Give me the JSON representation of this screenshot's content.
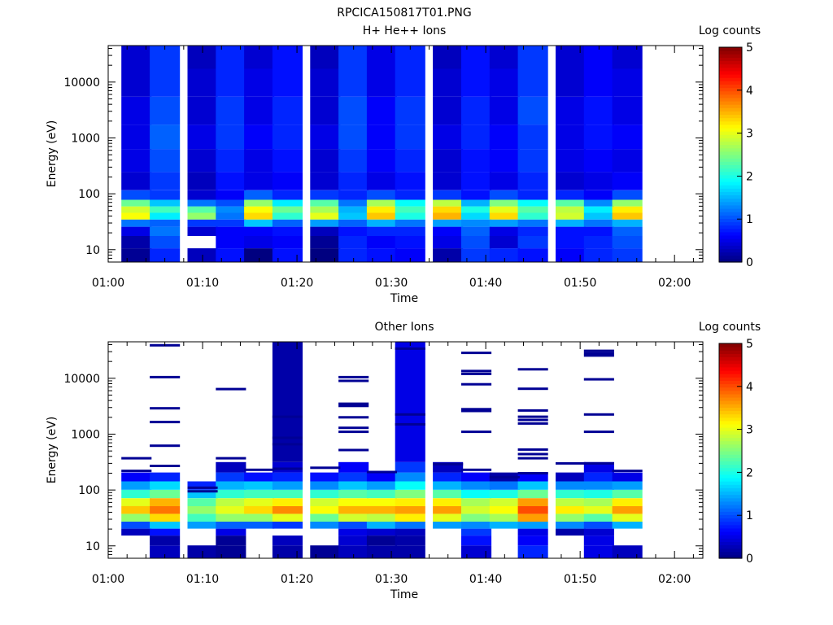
{
  "figure_title": "RPCICA150817T01.PNG",
  "colorbar_ticks": [
    "0",
    "1",
    "2",
    "3",
    "4",
    "5"
  ],
  "chart_data": [
    {
      "type": "heatmap",
      "title": "H+ He++ Ions",
      "xlabel": "Time",
      "ylabel": "Energy (eV)",
      "colorbar_label": "Log counts",
      "xlim": [
        "01:00",
        "02:03"
      ],
      "x_ticks": [
        "01:00",
        "01:10",
        "01:20",
        "01:30",
        "01:40",
        "01:50",
        "02:00"
      ],
      "ylim": [
        6,
        45000
      ],
      "y_scale": "log",
      "y_ticks": [
        "10",
        "100",
        "1000",
        "10000"
      ],
      "clim": [
        0,
        5
      ],
      "time_bins": [
        "01:03",
        "01:06",
        "01:10",
        "01:13",
        "01:16",
        "01:19",
        "01:23",
        "01:26",
        "01:29",
        "01:32",
        "01:36",
        "01:39",
        "01:42",
        "01:45",
        "01:49",
        "01:52",
        "01:55"
      ],
      "energy_bands": [
        {
          "label": "8",
          "values": [
            0.1,
            0.8,
            0.3,
            0.7,
            0.0,
            0.7,
            0.0,
            0.8,
            0.7,
            0.6,
            0.2,
            0.9,
            0.8,
            0.7,
            0.6,
            0.8,
            0.9
          ]
        },
        {
          "label": "14",
          "values": [
            0.2,
            1.0,
            null,
            0.6,
            0.5,
            0.6,
            0.1,
            0.8,
            0.6,
            0.7,
            0.5,
            1.0,
            0.4,
            0.9,
            0.7,
            0.8,
            1.0
          ]
        },
        {
          "label": "22",
          "values": [
            0.5,
            1.2,
            0.4,
            0.6,
            0.6,
            0.7,
            0.3,
            0.7,
            0.8,
            0.8,
            0.6,
            1.1,
            0.5,
            0.8,
            0.7,
            0.7,
            1.1
          ]
        },
        {
          "label": "30",
          "values": [
            1.2,
            1.1,
            0.9,
            0.9,
            1.6,
            1.1,
            1.4,
            1.1,
            1.5,
            1.2,
            1.4,
            1.3,
            1.4,
            1.2,
            1.5,
            1.2,
            1.5
          ]
        },
        {
          "label": "40",
          "values": [
            3.1,
            1.8,
            2.6,
            1.2,
            3.3,
            2.1,
            3.0,
            1.6,
            3.4,
            2.0,
            3.5,
            1.7,
            3.3,
            2.1,
            2.9,
            1.6,
            3.4
          ]
        },
        {
          "label": "52",
          "values": [
            2.9,
            2.2,
            2.3,
            1.3,
            3.1,
            2.4,
            2.7,
            1.5,
            3.2,
            2.2,
            3.3,
            2.0,
            3.0,
            2.3,
            2.8,
            1.8,
            3.2
          ]
        },
        {
          "label": "68",
          "values": [
            2.4,
            1.6,
            1.2,
            1.0,
            2.6,
            1.8,
            2.3,
            1.2,
            2.7,
            1.9,
            2.8,
            1.5,
            2.5,
            1.9,
            2.3,
            1.3,
            2.6
          ]
        },
        {
          "label": "90",
          "values": [
            1.0,
            0.9,
            0.4,
            0.6,
            1.1,
            0.8,
            0.9,
            0.8,
            1.0,
            0.8,
            0.9,
            0.7,
            1.0,
            0.8,
            0.8,
            0.6,
            1.0
          ]
        },
        {
          "label": "150",
          "values": [
            0.4,
            0.9,
            0.3,
            0.7,
            0.5,
            0.6,
            0.4,
            0.8,
            0.5,
            0.7,
            0.4,
            0.7,
            0.5,
            0.8,
            0.4,
            0.5,
            0.6
          ]
        },
        {
          "label": "400",
          "values": [
            0.5,
            1.0,
            0.4,
            0.8,
            0.5,
            0.7,
            0.4,
            0.9,
            0.6,
            0.8,
            0.4,
            0.7,
            0.6,
            0.9,
            0.5,
            0.6,
            0.5
          ]
        },
        {
          "label": "1000",
          "values": [
            0.5,
            1.1,
            0.5,
            0.9,
            0.6,
            0.8,
            0.5,
            1.0,
            0.6,
            0.9,
            0.5,
            0.8,
            0.6,
            0.9,
            0.5,
            0.7,
            0.6
          ]
        },
        {
          "label": "3000",
          "values": [
            0.5,
            1.0,
            0.4,
            0.9,
            0.5,
            0.8,
            0.4,
            1.0,
            0.6,
            0.9,
            0.4,
            0.8,
            0.5,
            1.0,
            0.5,
            0.7,
            0.5
          ]
        },
        {
          "label": "10000",
          "values": [
            0.4,
            0.9,
            0.4,
            0.8,
            0.5,
            0.7,
            0.4,
            0.9,
            0.5,
            0.8,
            0.4,
            0.7,
            0.5,
            0.9,
            0.4,
            0.6,
            0.5
          ]
        },
        {
          "label": "30000",
          "values": [
            0.4,
            0.9,
            0.3,
            0.8,
            0.4,
            0.7,
            0.3,
            0.9,
            0.5,
            0.8,
            0.3,
            0.7,
            0.4,
            0.9,
            0.4,
            0.6,
            0.4
          ]
        }
      ]
    },
    {
      "type": "heatmap",
      "title": "Other Ions",
      "xlabel": "Time",
      "ylabel": "Energy (eV)",
      "colorbar_label": "Log counts",
      "xlim": [
        "01:00",
        "02:03"
      ],
      "x_ticks": [
        "01:00",
        "01:10",
        "01:20",
        "01:30",
        "01:40",
        "01:50",
        "02:00"
      ],
      "ylim": [
        6,
        45000
      ],
      "y_scale": "log",
      "y_ticks": [
        "10",
        "100",
        "1000",
        "10000"
      ],
      "clim": [
        0,
        5
      ],
      "time_bins": [
        "01:03",
        "01:06",
        "01:10",
        "01:13",
        "01:16",
        "01:19",
        "01:23",
        "01:26",
        "01:29",
        "01:32",
        "01:36",
        "01:39",
        "01:42",
        "01:45",
        "01:49",
        "01:52",
        "01:55"
      ],
      "energy_bands": [
        {
          "label": "8",
          "values": [
            null,
            0.3,
            0.2,
            0.1,
            null,
            0.2,
            0.1,
            0.3,
            0.2,
            0.2,
            null,
            0.4,
            null,
            0.8,
            null,
            0.5,
            0.3
          ]
        },
        {
          "label": "13",
          "values": [
            null,
            0.2,
            null,
            0.1,
            null,
            0.3,
            null,
            0.4,
            0.1,
            0.2,
            null,
            0.7,
            null,
            0.6,
            null,
            0.5,
            null
          ]
        },
        {
          "label": "18",
          "values": [
            0.3,
            0.7,
            null,
            0.5,
            null,
            null,
            null,
            0.5,
            0.4,
            0.3,
            null,
            0.9,
            null,
            0.5,
            0.2,
            0.4,
            null
          ]
        },
        {
          "label": "23",
          "values": [
            1.0,
            1.6,
            1.4,
            1.1,
            1.1,
            0.9,
            1.3,
            1.0,
            1.5,
            1.2,
            1.4,
            1.3,
            1.5,
            1.4,
            1.3,
            1.0,
            1.5
          ]
        },
        {
          "label": "32",
          "values": [
            2.6,
            3.3,
            2.2,
            2.6,
            2.6,
            3.0,
            2.4,
            2.9,
            2.8,
            3.2,
            3.0,
            2.5,
            2.7,
            3.6,
            2.6,
            2.3,
            3.0
          ]
        },
        {
          "label": "44",
          "values": [
            3.4,
            3.8,
            2.6,
            3.0,
            3.3,
            3.7,
            3.1,
            3.5,
            3.5,
            3.6,
            3.6,
            2.9,
            3.1,
            4.0,
            3.2,
            3.0,
            3.6
          ]
        },
        {
          "label": "60",
          "values": [
            3.0,
            3.5,
            2.3,
            2.8,
            3.0,
            3.2,
            2.9,
            3.1,
            3.1,
            3.2,
            3.2,
            2.7,
            2.9,
            3.6,
            2.8,
            2.7,
            3.2
          ]
        },
        {
          "label": "85",
          "values": [
            2.1,
            2.4,
            1.6,
            2.1,
            2.2,
            2.2,
            2.1,
            2.3,
            2.2,
            2.5,
            2.3,
            1.9,
            2.0,
            2.4,
            2.1,
            2.0,
            2.3
          ]
        },
        {
          "label": "120",
          "values": [
            1.4,
            1.7,
            0.8,
            1.5,
            1.6,
            1.4,
            1.3,
            1.6,
            1.4,
            1.9,
            1.5,
            1.3,
            1.2,
            1.6,
            1.3,
            1.3,
            1.4
          ]
        },
        {
          "label": "170",
          "values": [
            0.6,
            0.8,
            null,
            0.9,
            0.7,
            0.8,
            0.7,
            0.9,
            0.6,
            1.3,
            0.8,
            0.6,
            0.2,
            0.6,
            0.3,
            0.8,
            0.5
          ]
        },
        {
          "label": "250",
          "values": [
            null,
            null,
            null,
            0.3,
            null,
            0.4,
            null,
            0.6,
            null,
            0.9,
            0.3,
            null,
            null,
            null,
            null,
            0.5,
            null
          ]
        },
        {
          "label": "400",
          "values": [
            null,
            null,
            null,
            null,
            null,
            0.2,
            null,
            null,
            null,
            0.5,
            null,
            null,
            null,
            null,
            null,
            null,
            null
          ]
        }
      ],
      "sparse_lines": [
        {
          "time": "01:03",
          "energies": [
            370,
            220
          ]
        },
        {
          "time": "01:06",
          "energies": [
            39000,
            10500,
            2900,
            1650,
            620,
            270
          ]
        },
        {
          "time": "01:10",
          "energies": [
            110,
            95
          ]
        },
        {
          "time": "01:13",
          "energies": [
            6400,
            370
          ]
        },
        {
          "time": "01:16",
          "energies": [
            230
          ]
        },
        {
          "time": "01:19",
          "energies": [
            2050,
            860,
            660,
            240
          ]
        },
        {
          "time": "01:23",
          "energies": [
            250
          ]
        },
        {
          "time": "01:26",
          "energies": [
            10500,
            9000,
            3500,
            3200,
            2000,
            1300,
            1100,
            520
          ]
        },
        {
          "time": "01:29",
          "energies": [
            210
          ]
        },
        {
          "time": "01:32",
          "energies": [
            34000,
            2250,
            1500
          ]
        },
        {
          "time": "01:36",
          "energies": [
            290
          ]
        },
        {
          "time": "01:39",
          "energies": [
            28500,
            13500,
            12000,
            7800,
            2800,
            2600,
            1100,
            230
          ]
        },
        {
          "time": "01:42",
          "energies": [
            170
          ]
        },
        {
          "time": "01:45",
          "energies": [
            14500,
            6500,
            2650,
            2050,
            1800,
            1550,
            530,
            440,
            370,
            200
          ]
        },
        {
          "time": "01:49",
          "energies": [
            300
          ]
        },
        {
          "time": "01:52",
          "energies": [
            31000,
            28000,
            25500,
            9600,
            2250,
            1100,
            300
          ]
        },
        {
          "time": "01:55",
          "energies": [
            220
          ]
        }
      ]
    }
  ]
}
